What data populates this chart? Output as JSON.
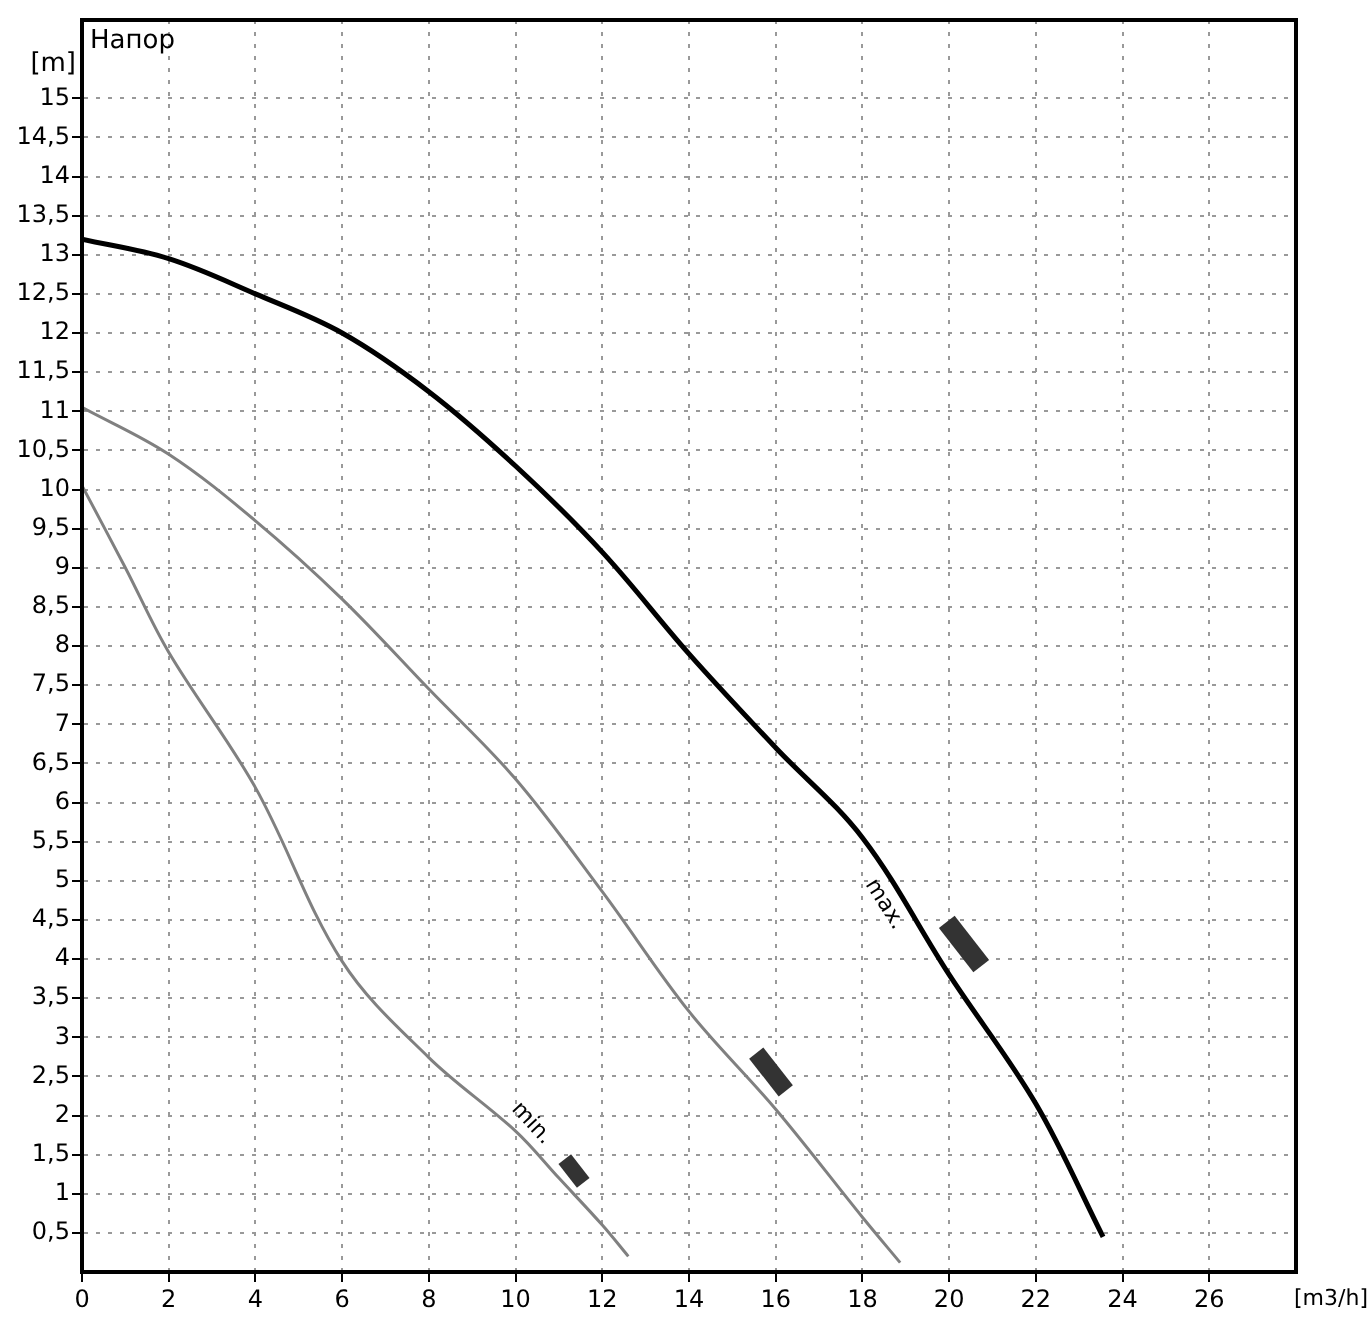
{
  "chart_data": {
    "type": "line",
    "title": "Напор",
    "xlabel": "[m3/h]",
    "ylabel": "[m]",
    "xlim": [
      0,
      28
    ],
    "xticks": [
      0,
      2,
      4,
      6,
      8,
      10,
      12,
      14,
      16,
      18,
      20,
      22,
      24,
      26
    ],
    "ylim": [
      0,
      16
    ],
    "yticks": [
      {
        "value": 0.5,
        "label": "0,5"
      },
      1,
      {
        "value": 1.5,
        "label": "1,5"
      },
      2,
      {
        "value": 2.5,
        "label": "2,5"
      },
      3,
      {
        "value": 3.5,
        "label": "3,5"
      },
      4,
      {
        "value": 4.5,
        "label": "4,5"
      },
      5,
      {
        "value": 5.5,
        "label": "5,5"
      },
      6,
      {
        "value": 6.5,
        "label": "6,5"
      },
      7,
      {
        "value": 7.5,
        "label": "7,5"
      },
      8,
      {
        "value": 8.5,
        "label": "8,5"
      },
      9,
      {
        "value": 9.5,
        "label": "9,5"
      },
      10,
      {
        "value": 10.5,
        "label": "10,5"
      },
      11,
      {
        "value": 11.5,
        "label": "11,5"
      },
      12,
      {
        "value": 12.5,
        "label": "12,5"
      },
      13,
      {
        "value": 13.5,
        "label": "13,5"
      },
      14,
      {
        "value": 14.5,
        "label": "14,5"
      },
      15
    ],
    "grid": true,
    "legend": false,
    "marker": "none",
    "line_style": "solid",
    "series": [
      {
        "name": "max.",
        "color": "#000000",
        "x": [
          0,
          2,
          4,
          6,
          8,
          10,
          12,
          14,
          16,
          18,
          20,
          22,
          23.55
        ],
        "values": [
          13.2,
          12.95,
          12.5,
          12.0,
          11.25,
          10.3,
          9.2,
          7.9,
          6.7,
          5.55,
          3.8,
          2.15,
          0.45
        ]
      },
      {
        "color": "#808080",
        "x": [
          0,
          2,
          4,
          6,
          8,
          10,
          12,
          14,
          16,
          18,
          18.87
        ],
        "values": [
          11.05,
          10.45,
          9.6,
          8.6,
          7.45,
          6.3,
          4.86,
          3.33,
          2.08,
          0.7,
          0.12
        ]
      },
      {
        "name": "min.",
        "color": "#808080",
        "x": [
          0,
          1,
          2,
          4,
          6,
          8,
          10,
          11,
          12,
          12.6
        ],
        "values": [
          10.05,
          9.0,
          7.92,
          6.19,
          3.97,
          2.74,
          1.8,
          1.2,
          0.6,
          0.2
        ]
      }
    ]
  }
}
